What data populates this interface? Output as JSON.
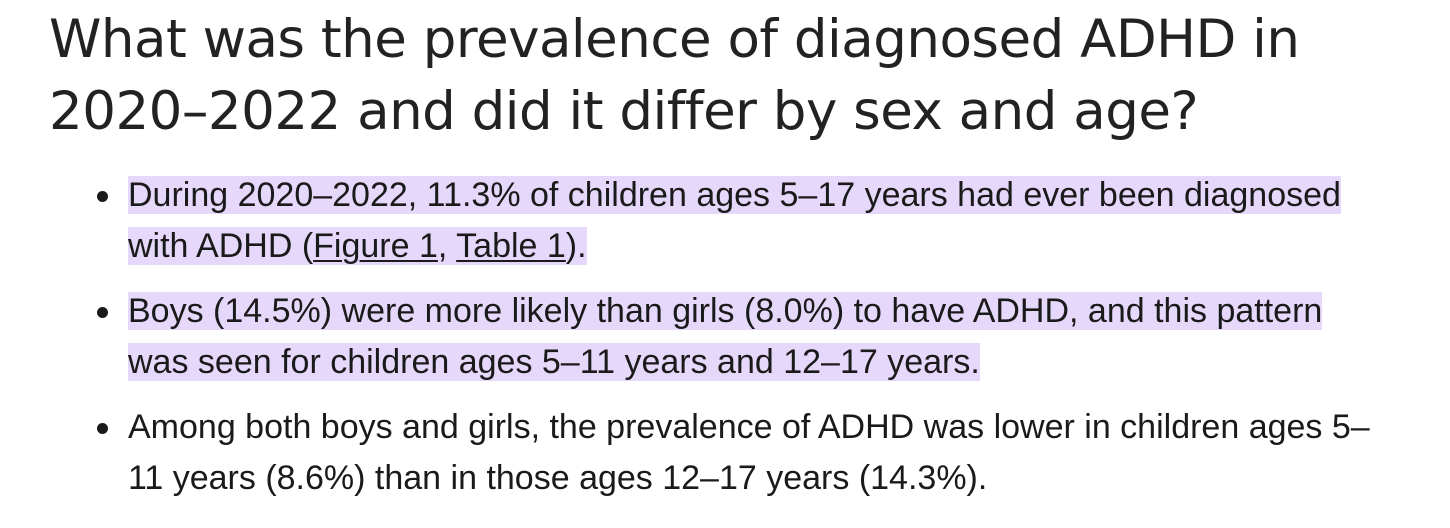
{
  "heading": "What was the prevalence of diagnosed ADHD in 2020–2022 and did it differ by sex and age?",
  "highlight_color": "#e6d8fb",
  "bullets": [
    {
      "text_before": "During 2020–2022, 11.3% of children ages 5–17 years had ever been diagnosed with ADHD (",
      "link1": "Figure 1",
      "separator": ", ",
      "link2": "Table 1",
      "text_after": ").",
      "highlighted": true
    },
    {
      "text": "Boys (14.5%) were more likely than girls (8.0%) to have ADHD, and this pattern was seen for children ages 5–11 years and 12–17 years.",
      "highlighted": true
    },
    {
      "text": "Among both boys and girls, the prevalence of ADHD was lower in children ages 5–11 years (8.6%) than in those ages 12–17 years (14.3%).",
      "highlighted": false
    }
  ]
}
